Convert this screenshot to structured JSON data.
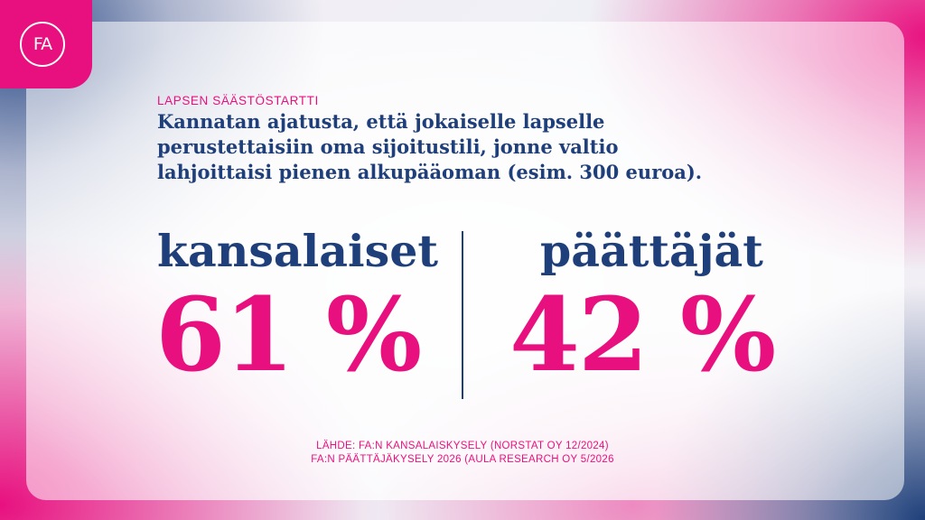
{
  "brand": {
    "logo_text": "FA",
    "colors": {
      "accent": "#e8107f",
      "navy": "#1f3f7b"
    }
  },
  "header": {
    "kicker": "LAPSEN SÄÄSTÖSTARTTI",
    "question_lines": [
      "Kannatan ajatusta, että jokaiselle lapselle",
      "perustettaisiin oma sijoitustili, jonne valtio",
      "lahjoittaisi pienen alkupääoman (esim. 300 euroa)."
    ]
  },
  "results": [
    {
      "label": "kansalaiset",
      "value_text": "61 %",
      "value": 61
    },
    {
      "label": "päättäjät",
      "value_text": "42 %",
      "value": 42
    }
  ],
  "source_lines": [
    "LÄHDE: FA:N KANSALAISKYSELY (NORSTAT OY 12/2024)",
    "FA:N PÄÄTTÄJÄKYSELY 2026 (AULA RESEARCH OY 5/2026"
  ]
}
